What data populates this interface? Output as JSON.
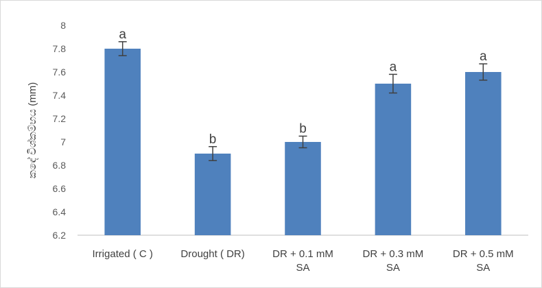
{
  "chart_data": {
    "type": "bar",
    "title": "",
    "xlabel": "",
    "ylabel": "කඳේ විශ්කම්භය (mm)",
    "ylim": [
      6.2,
      8.0
    ],
    "yticks": [
      6.2,
      6.4,
      6.6,
      6.8,
      7,
      7.2,
      7.4,
      7.6,
      7.8,
      8
    ],
    "ytick_labels": [
      "6.2",
      "6.4",
      "6.6",
      "6.8",
      "7",
      "7.2",
      "7.4",
      "7.6",
      "7.8",
      "8"
    ],
    "grid": false,
    "legend": "none",
    "bar_color": "#4f81bd",
    "categories": [
      [
        "Irrigated  ( C )"
      ],
      [
        "Drought ( DR)"
      ],
      [
        "DR + 0.1 mM",
        "SA"
      ],
      [
        "DR + 0.3 mM",
        "SA"
      ],
      [
        "DR + 0.5 mM",
        "SA"
      ]
    ],
    "values": [
      7.8,
      6.9,
      7.0,
      7.5,
      7.6
    ],
    "error": [
      0.06,
      0.06,
      0.05,
      0.08,
      0.07
    ],
    "annotations": [
      "a",
      "b",
      "b",
      "a",
      "a"
    ]
  }
}
